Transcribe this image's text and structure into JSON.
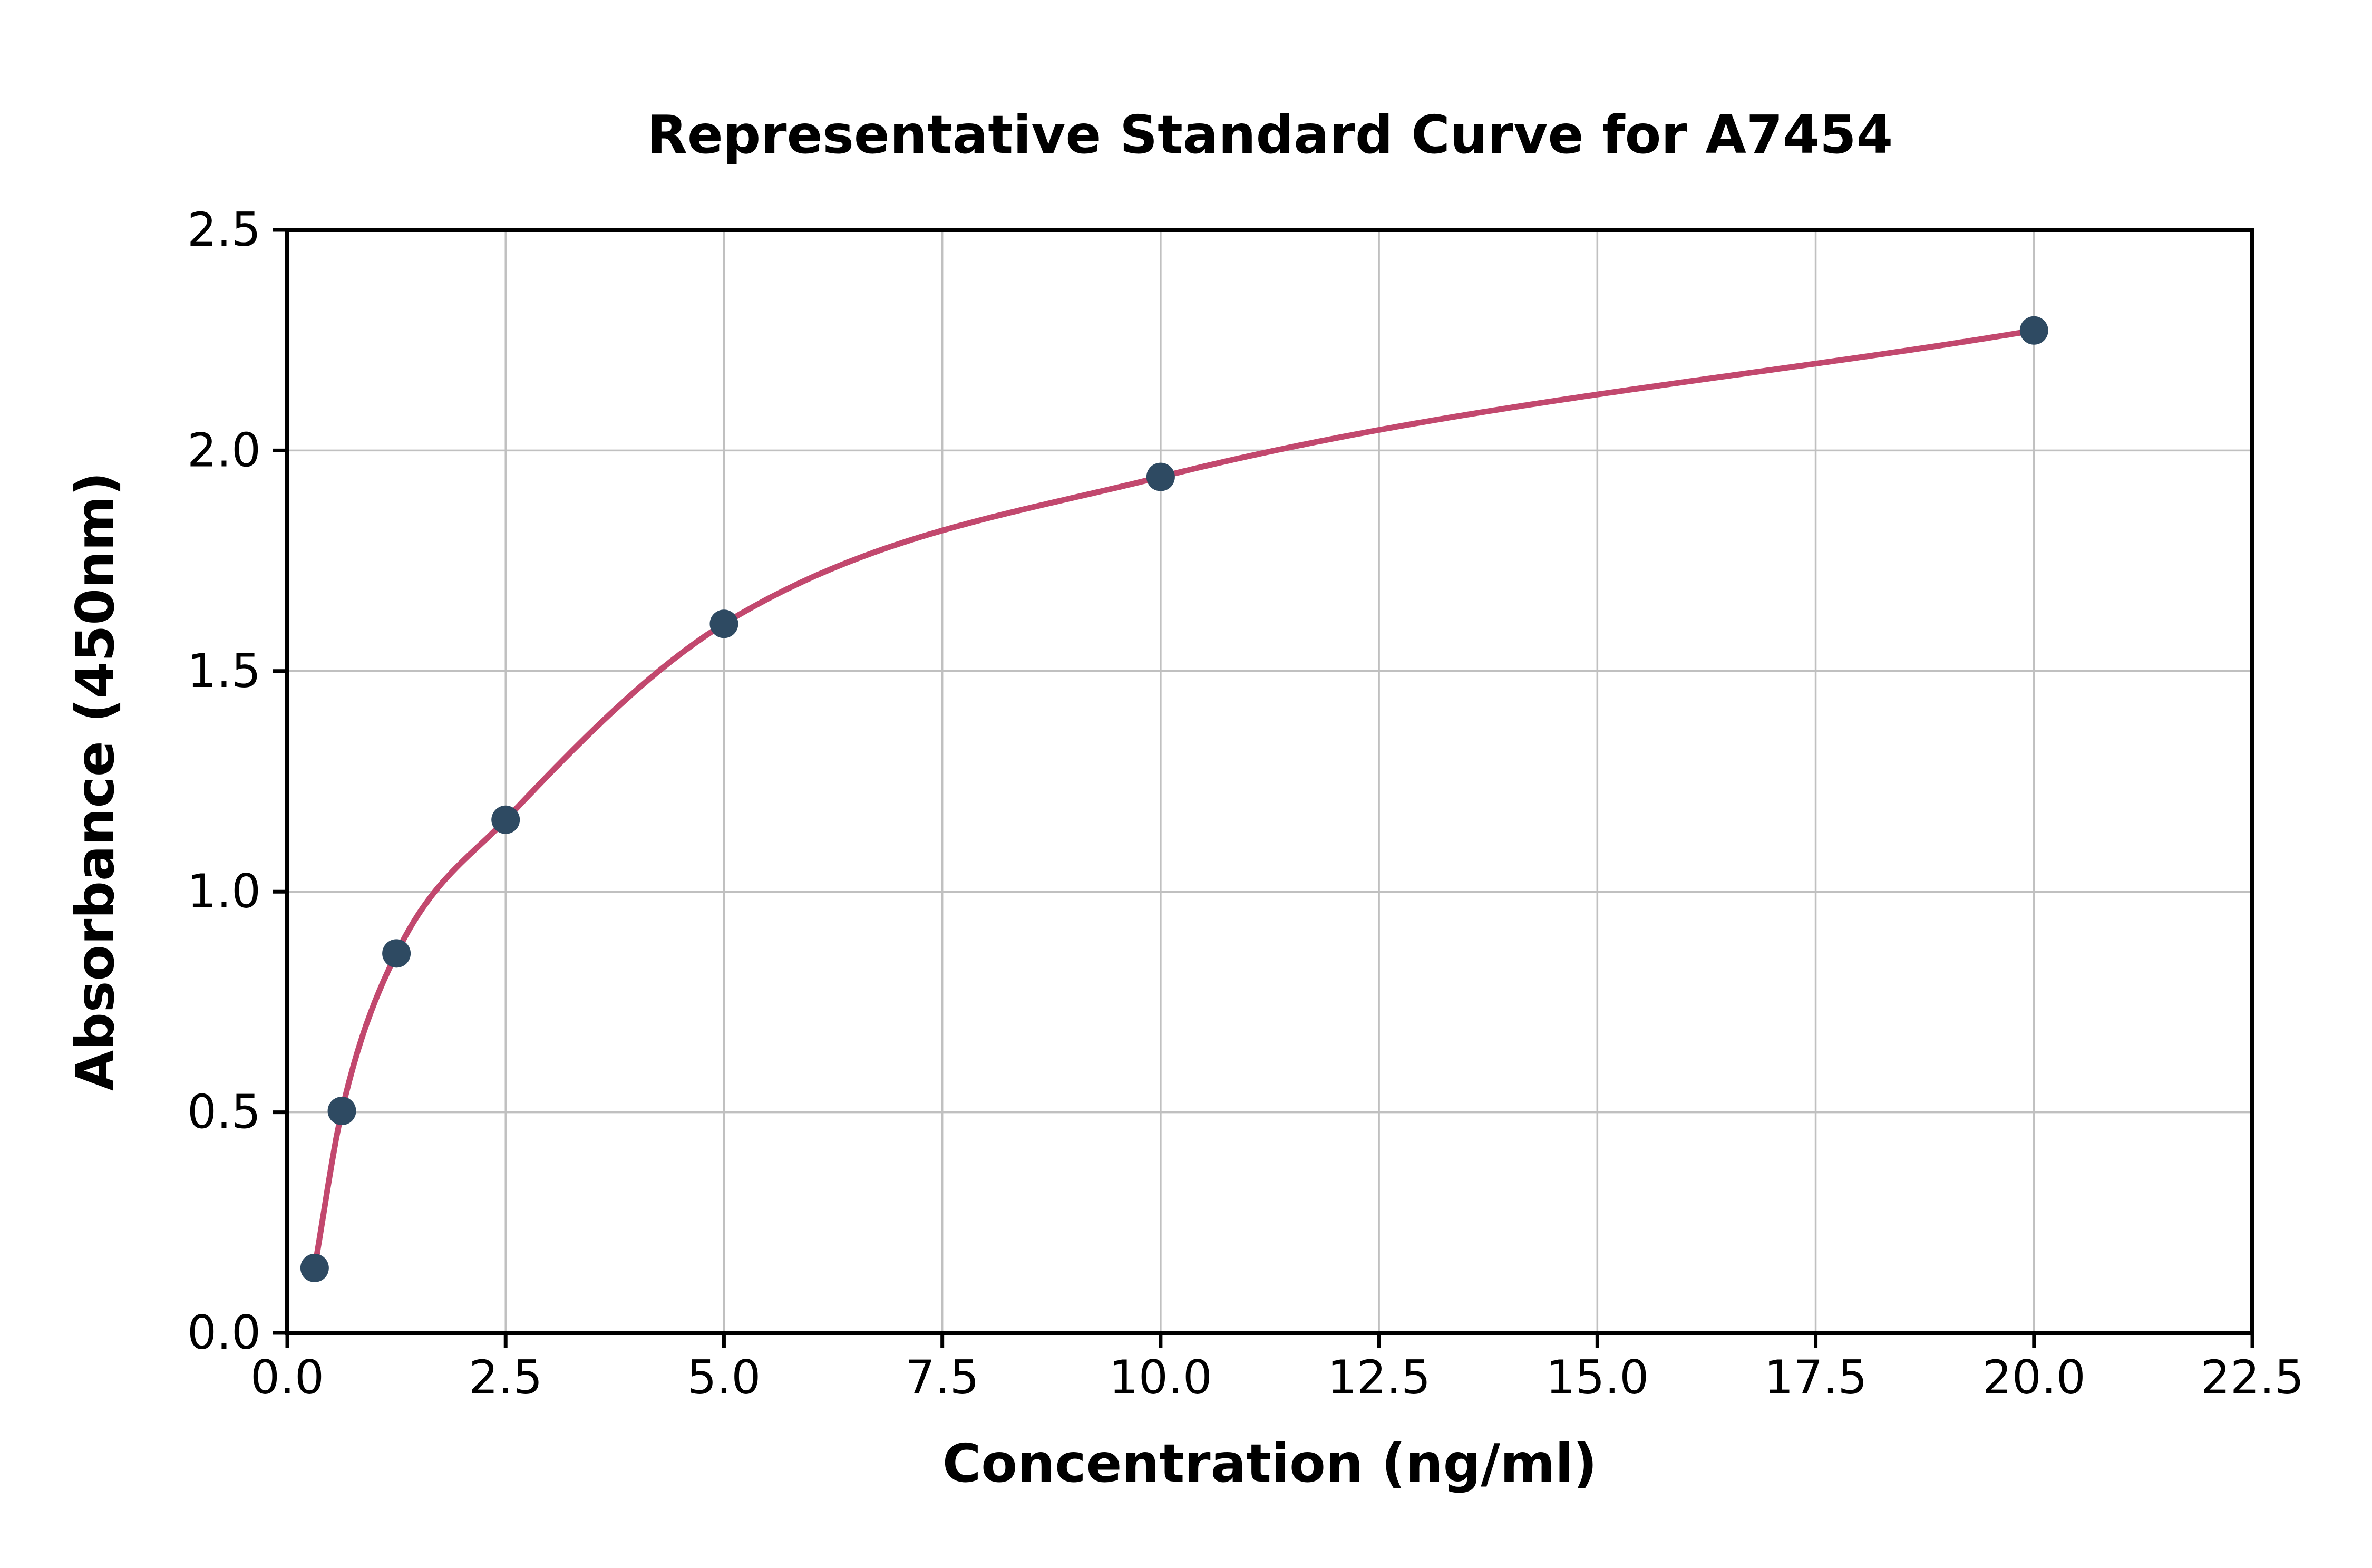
{
  "chart_data": {
    "type": "scatter",
    "title": "Representative Standard Curve for A7454",
    "xlabel": "Concentration (ng/ml)",
    "ylabel": "Absorbance (450nm)",
    "xlim": [
      0,
      22.5
    ],
    "ylim": [
      0,
      2.5
    ],
    "grid": true,
    "legend": "none",
    "x_tick_values": [
      0.0,
      2.5,
      5.0,
      7.5,
      10.0,
      12.5,
      15.0,
      17.5,
      20.0,
      22.5
    ],
    "x_tick_labels": [
      "0.0",
      "2.5",
      "5.0",
      "7.5",
      "10.0",
      "12.5",
      "15.0",
      "17.5",
      "20.0",
      "22.5"
    ],
    "y_tick_values": [
      0.0,
      0.5,
      1.0,
      1.5,
      2.0,
      2.5
    ],
    "y_tick_labels": [
      "0.0",
      "0.5",
      "1.0",
      "1.5",
      "2.0",
      "2.5"
    ],
    "series": [
      {
        "name": "standard-curve-points",
        "points": [
          {
            "x": 0.313,
            "y": 0.147
          },
          {
            "x": 0.625,
            "y": 0.503
          },
          {
            "x": 1.25,
            "y": 0.86
          },
          {
            "x": 2.5,
            "y": 1.163
          },
          {
            "x": 5.0,
            "y": 1.607
          },
          {
            "x": 10.0,
            "y": 1.94
          },
          {
            "x": 20.0,
            "y": 2.272
          }
        ]
      }
    ],
    "colors": {
      "curve": "#c2486e",
      "points": "#2e4a62",
      "grid": "#c0c0c0",
      "axis": "#000000",
      "background": "#ffffff"
    }
  }
}
